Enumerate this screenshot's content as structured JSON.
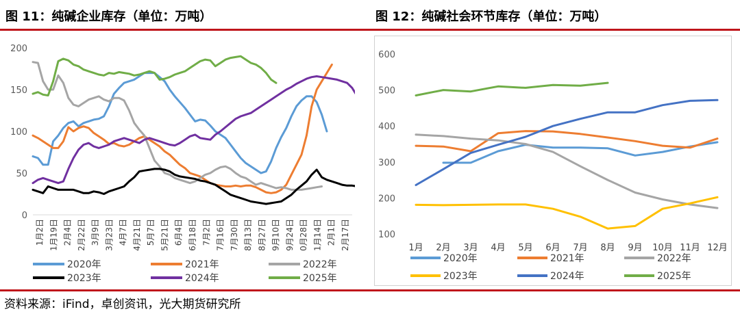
{
  "source": "资料来源：iFind，卓创资讯，光大期货研究所",
  "colors": {
    "2020年": "#5b9bd5",
    "2021年": "#ed7d31",
    "2022年": "#a5a5a5",
    "2023年": "#000000",
    "2024年": "#7030a0",
    "2025年": "#70ad47",
    "2023年_r": "#ffc000",
    "2024年_r": "#4472c4",
    "rule": "#c0161b"
  },
  "chart_data": [
    {
      "id": "fig11",
      "title": "图 11：纯碱企业库存（单位：万吨）",
      "type": "line",
      "ylim": [
        0,
        200
      ],
      "yticks": [
        "0",
        "50",
        "100",
        "150",
        "200"
      ],
      "x_labels": [
        "1月2日",
        "1月19日",
        "2月4日",
        "2月22日",
        "3月9日",
        "3月23日",
        "4月7日",
        "4月21日",
        "5月7日",
        "5月21日",
        "6月4日",
        "6月18日",
        "7月2日",
        "7月16日",
        "7月30日",
        "8月13日",
        "8月27日",
        "9月10日",
        "9月24日",
        "0月28日",
        "1月14日",
        "2月1日",
        "2月17日"
      ],
      "series": [
        {
          "name": "2020年",
          "values": [
            70,
            68,
            60,
            60,
            88,
            95,
            104,
            110,
            112,
            106,
            110,
            112,
            114,
            115,
            118,
            130,
            145,
            152,
            158,
            160,
            162,
            166,
            170,
            170,
            170,
            165,
            160,
            150,
            142,
            135,
            128,
            120,
            112,
            114,
            113,
            107,
            100,
            96,
            92,
            84,
            76,
            68,
            62,
            58,
            54,
            50,
            52,
            64,
            80,
            93,
            104,
            118,
            130,
            137,
            142,
            142,
            135,
            120,
            100
          ]
        },
        {
          "name": "2021年",
          "values": [
            95,
            92,
            88,
            84,
            80,
            80,
            88,
            105,
            100,
            104,
            106,
            104,
            98,
            94,
            90,
            85,
            86,
            83,
            82,
            84,
            88,
            92,
            94,
            90,
            86,
            82,
            76,
            72,
            66,
            60,
            56,
            50,
            48,
            46,
            42,
            38,
            36,
            35,
            34,
            34,
            35,
            34,
            35,
            35,
            33,
            30,
            27,
            26,
            27,
            30,
            36,
            48,
            60,
            72,
            95,
            130,
            150,
            160,
            170,
            180
          ]
        },
        {
          "name": "2022年",
          "values": [
            183,
            182,
            160,
            150,
            150,
            167,
            158,
            140,
            132,
            130,
            134,
            138,
            140,
            142,
            138,
            136,
            140,
            140,
            137,
            125,
            110,
            102,
            95,
            80,
            65,
            58,
            50,
            48,
            44,
            42,
            40,
            38,
            40,
            44,
            48,
            50,
            54,
            57,
            58,
            55,
            50,
            46,
            44,
            40,
            36,
            38,
            36,
            34,
            32,
            33,
            32,
            30,
            30,
            30,
            31,
            32,
            33,
            34
          ]
        },
        {
          "name": "2023年",
          "values": [
            30,
            28,
            26,
            34,
            32,
            30,
            30,
            30,
            30,
            28,
            26,
            26,
            28,
            27,
            25,
            28,
            30,
            32,
            34,
            40,
            45,
            52,
            53,
            54,
            55,
            55,
            54,
            52,
            48,
            46,
            45,
            44,
            43,
            41,
            40,
            38,
            36,
            32,
            28,
            24,
            22,
            20,
            18,
            16,
            15,
            14,
            13,
            14,
            15,
            16,
            20,
            24,
            30,
            35,
            40,
            48,
            54,
            45,
            42,
            40,
            38,
            36,
            35,
            35,
            34
          ]
        },
        {
          "name": "2024年",
          "values": [
            38,
            42,
            44,
            42,
            40,
            38,
            40,
            55,
            68,
            78,
            84,
            86,
            82,
            80,
            82,
            84,
            88,
            90,
            92,
            90,
            88,
            86,
            90,
            92,
            90,
            88,
            86,
            84,
            83,
            86,
            90,
            94,
            96,
            92,
            91,
            90,
            96,
            100,
            105,
            110,
            115,
            118,
            120,
            122,
            126,
            130,
            134,
            138,
            142,
            146,
            150,
            153,
            157,
            160,
            163,
            165,
            166,
            165,
            164,
            163,
            162,
            160,
            158,
            152,
            142
          ]
        },
        {
          "name": "2025年",
          "values": [
            145,
            147,
            144,
            143,
            160,
            184,
            187,
            185,
            180,
            178,
            174,
            172,
            170,
            168,
            167,
            170,
            169,
            171,
            170,
            169,
            167,
            168,
            170,
            172,
            170,
            162,
            163,
            165,
            168,
            170,
            172,
            176,
            180,
            184,
            186,
            185,
            178,
            182,
            186,
            188,
            189,
            190,
            186,
            182,
            180,
            176,
            170,
            162,
            158
          ]
        }
      ],
      "legend": [
        "2020年",
        "2021年",
        "2022年",
        "2023年",
        "2024年",
        "2025年"
      ]
    },
    {
      "id": "fig12",
      "title": "图 12：纯碱社会环节库存（单位：万吨）",
      "type": "line",
      "ylim": [
        100,
        600
      ],
      "yticks": [
        "100",
        "200",
        "300",
        "400",
        "500",
        "600"
      ],
      "categories": [
        "1月",
        "2月",
        "3月",
        "4月",
        "5月",
        "6月",
        "7月",
        "8月",
        "9月",
        "10月",
        "11月",
        "12月"
      ],
      "series": [
        {
          "name": "2020年",
          "values": [
            null,
            298,
            298,
            330,
            348,
            340,
            340,
            338,
            318,
            328,
            343,
            355
          ]
        },
        {
          "name": "2021年",
          "values": [
            345,
            343,
            330,
            380,
            386,
            385,
            378,
            368,
            358,
            345,
            340,
            365
          ]
        },
        {
          "name": "2022年",
          "values": [
            376,
            372,
            365,
            360,
            350,
            328,
            288,
            250,
            215,
            196,
            182,
            172
          ]
        },
        {
          "name": "2023年",
          "values": [
            181,
            180,
            181,
            182,
            182,
            170,
            148,
            115,
            122,
            170,
            185,
            202
          ]
        },
        {
          "name": "2024年",
          "values": [
            236,
            280,
            325,
            348,
            370,
            400,
            420,
            438,
            438,
            458,
            470,
            472
          ]
        },
        {
          "name": "2025年",
          "values": [
            485,
            500,
            496,
            510,
            506,
            514,
            512,
            520,
            null,
            null,
            null,
            null
          ]
        }
      ],
      "legend": [
        "2020年",
        "2021年",
        "2022年",
        "2023年",
        "2024年",
        "2025年"
      ]
    }
  ]
}
